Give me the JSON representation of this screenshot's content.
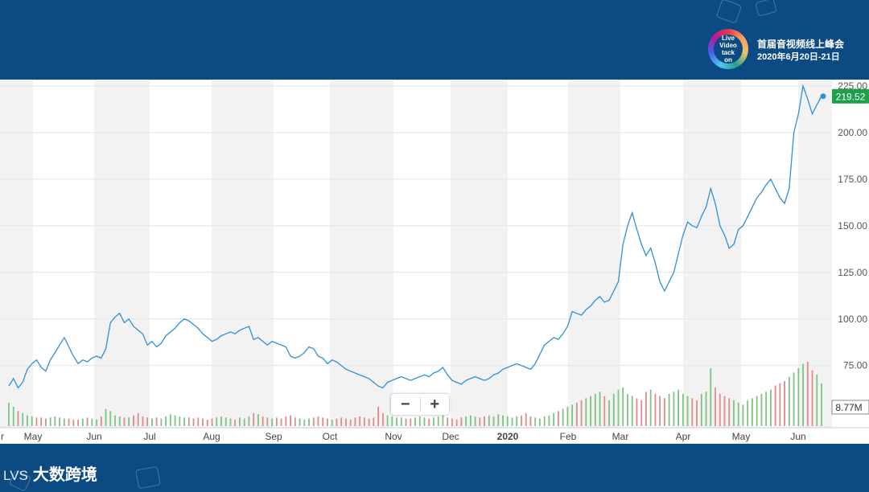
{
  "event": {
    "logo_text": [
      "Live",
      "Video",
      "tack",
      "on"
    ],
    "title": "首届音视频线上峰会",
    "date": "2020年6月20日-21日"
  },
  "brand": {
    "mark": "LVS",
    "name": "大数跨境"
  },
  "zoom": {
    "out_label": "−",
    "in_label": "+"
  },
  "colors": {
    "line": "#2f8fd8",
    "vol_up": "#7dc383",
    "vol_down": "#e08a8a",
    "last_price_bg": "#1e9f4a",
    "band": "#f2f2f2"
  },
  "chart_data": {
    "type": "line",
    "title": "",
    "xlabel": "",
    "ylabel": "",
    "ylim": [
      50,
      225
    ],
    "yticks": [
      "225.00",
      "200.00",
      "175.00",
      "150.00",
      "125.00",
      "100.00",
      "75.00"
    ],
    "xticks": [
      "r",
      "May",
      "Jun",
      "Jul",
      "Aug",
      "Sep",
      "Oct",
      "Nov",
      "Dec",
      "2020",
      "Feb",
      "Mar",
      "Apr",
      "May",
      "Jun"
    ],
    "last_price": "219.52",
    "volume_label": "8.77M",
    "grid": true,
    "series": [
      {
        "values": [
          64,
          68,
          63,
          66,
          73,
          76,
          78,
          74,
          72,
          78,
          82,
          86,
          90,
          85,
          80,
          76,
          78,
          77,
          79,
          80,
          79,
          84,
          98,
          101,
          103,
          98,
          100,
          96,
          94,
          92,
          86,
          88,
          85,
          87,
          91,
          93,
          95,
          98,
          100,
          99,
          97,
          95,
          92,
          90,
          88,
          89,
          91,
          92,
          93,
          92,
          94,
          95,
          96,
          89,
          90,
          88,
          86,
          88,
          87,
          86,
          85,
          80,
          79,
          80,
          82,
          85,
          84,
          80,
          79,
          76,
          78,
          77,
          75,
          73,
          72,
          71,
          70,
          69,
          68,
          66,
          64,
          63,
          66,
          67,
          68,
          69,
          68,
          67,
          68,
          69,
          70,
          69,
          71,
          72,
          74,
          70,
          67,
          66,
          65,
          67,
          68,
          69,
          68,
          67,
          68,
          70,
          71,
          73,
          74,
          75,
          76,
          75,
          74,
          73,
          76,
          81,
          86,
          88,
          90,
          89,
          92,
          96,
          104,
          103,
          102,
          105,
          107,
          110,
          112,
          109,
          110,
          115,
          120,
          140,
          150,
          157,
          148,
          140,
          134,
          138,
          130,
          120,
          115,
          120,
          125,
          135,
          145,
          152,
          150,
          149,
          155,
          160,
          170,
          162,
          150,
          145,
          138,
          140,
          148,
          150,
          155,
          160,
          165,
          168,
          172,
          175,
          170,
          165,
          162,
          170,
          200,
          210,
          225,
          218,
          210,
          215,
          219.52
        ],
        "volume": [
          22,
          18,
          14,
          12,
          10,
          9,
          8,
          8,
          7,
          8,
          9,
          8,
          7,
          7,
          6,
          6,
          7,
          8,
          7,
          6,
          9,
          16,
          14,
          10,
          9,
          8,
          8,
          10,
          12,
          9,
          8,
          7,
          8,
          7,
          9,
          11,
          10,
          9,
          8,
          8,
          7,
          8,
          7,
          6,
          7,
          8,
          9,
          8,
          7,
          6,
          8,
          7,
          9,
          12,
          11,
          9,
          8,
          7,
          8,
          7,
          9,
          10,
          8,
          7,
          6,
          7,
          8,
          9,
          8,
          7,
          6,
          7,
          8,
          7,
          6,
          8,
          9,
          8,
          7,
          8,
          18,
          12,
          10,
          9,
          8,
          8,
          7,
          7,
          8,
          9,
          8,
          7,
          8,
          9,
          10,
          8,
          7,
          6,
          8,
          9,
          10,
          9,
          8,
          9,
          10,
          9,
          11,
          10,
          9,
          8,
          9,
          10,
          12,
          9,
          8,
          7,
          9,
          10,
          12,
          14,
          16,
          18,
          20,
          22,
          24,
          26,
          28,
          30,
          32,
          28,
          24,
          30,
          34,
          36,
          30,
          28,
          26,
          24,
          32,
          34,
          30,
          28,
          26,
          30,
          32,
          34,
          30,
          28,
          26,
          24,
          30,
          32,
          54,
          36,
          30,
          28,
          26,
          24,
          22,
          20,
          24,
          26,
          28,
          30,
          32,
          34,
          38,
          40,
          42,
          46,
          50,
          54,
          58,
          60,
          52,
          48,
          40
        ],
        "volume_up": [
          true,
          true,
          false,
          true,
          true,
          true,
          false,
          false,
          false,
          true,
          true,
          true,
          true,
          false,
          false,
          false,
          true,
          false,
          true,
          true,
          false,
          true,
          true,
          true,
          true,
          false,
          true,
          false,
          false,
          false,
          false,
          true,
          false,
          true,
          true,
          true,
          true,
          true,
          true,
          false,
          false,
          false,
          false,
          false,
          false,
          true,
          true,
          true,
          true,
          false,
          true,
          true,
          true,
          false,
          true,
          false,
          false,
          true,
          false,
          false,
          false,
          false,
          false,
          true,
          true,
          true,
          false,
          false,
          false,
          false,
          true,
          false,
          false,
          false,
          false,
          false,
          false,
          false,
          false,
          false,
          false,
          false,
          true,
          true,
          true,
          true,
          false,
          false,
          true,
          true,
          true,
          false,
          true,
          true,
          true,
          false,
          false,
          false,
          false,
          true,
          true,
          true,
          false,
          false,
          true,
          true,
          true,
          true,
          true,
          true,
          true,
          false,
          false,
          false,
          true,
          true,
          true,
          true,
          true,
          false,
          true,
          true,
          true,
          false,
          false,
          true,
          true,
          true,
          true,
          false,
          true,
          true,
          true,
          true,
          true,
          true,
          false,
          false,
          false,
          true,
          false,
          false,
          false,
          true,
          true,
          true,
          true,
          true,
          false,
          false,
          true,
          true,
          true,
          false,
          false,
          false,
          false,
          true,
          true,
          true,
          true,
          true,
          true,
          true,
          true,
          true,
          false,
          false,
          false,
          true,
          true,
          true,
          true,
          false,
          false,
          true,
          true
        ]
      }
    ]
  }
}
